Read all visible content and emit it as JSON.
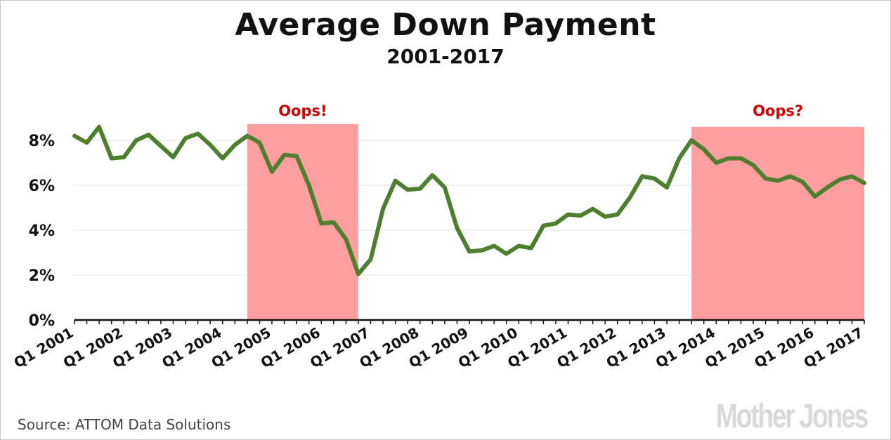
{
  "chart_data": {
    "type": "line",
    "title": "Average Down Payment",
    "subtitle": "2001-2017",
    "source": "Source: ATTOM Data Solutions",
    "logo": "Mother Jones",
    "ylim": [
      0,
      8.6
    ],
    "yticks": [
      {
        "value": 0,
        "label": "0%"
      },
      {
        "value": 2,
        "label": "2%"
      },
      {
        "value": 4,
        "label": "4%"
      },
      {
        "value": 6,
        "label": "6%"
      },
      {
        "value": 8,
        "label": "8%"
      }
    ],
    "grid": true,
    "x_labels": [
      {
        "index": 0,
        "label": "Q1 2001"
      },
      {
        "index": 4,
        "label": "Q1 2002"
      },
      {
        "index": 8,
        "label": "Q1 2003"
      },
      {
        "index": 12,
        "label": "Q1 2004"
      },
      {
        "index": 16,
        "label": "Q1 2005"
      },
      {
        "index": 20,
        "label": "Q1 2006"
      },
      {
        "index": 24,
        "label": "Q1 2007"
      },
      {
        "index": 28,
        "label": "Q1 2008"
      },
      {
        "index": 32,
        "label": "Q1 2009"
      },
      {
        "index": 36,
        "label": "Q1 2010"
      },
      {
        "index": 40,
        "label": "Q1 2011"
      },
      {
        "index": 44,
        "label": "Q1 2012"
      },
      {
        "index": 48,
        "label": "Q1 2013"
      },
      {
        "index": 52,
        "label": "Q1 2014"
      },
      {
        "index": 56,
        "label": "Q1 2015"
      },
      {
        "index": 60,
        "label": "Q1 2016"
      },
      {
        "index": 64,
        "label": "Q1 2017"
      }
    ],
    "series": [
      {
        "color": "#4e7e2e",
        "values": [
          8.2,
          7.9,
          8.6,
          7.2,
          7.25,
          8.0,
          8.25,
          7.75,
          7.25,
          8.1,
          8.3,
          7.8,
          7.2,
          7.8,
          8.2,
          7.9,
          6.6,
          7.35,
          7.3,
          6.0,
          4.3,
          4.35,
          3.6,
          2.05,
          2.7,
          4.95,
          6.2,
          5.8,
          5.85,
          6.45,
          5.9,
          4.1,
          3.05,
          3.1,
          3.3,
          2.95,
          3.3,
          3.2,
          4.2,
          4.3,
          4.7,
          4.65,
          4.95,
          4.6,
          4.7,
          5.45,
          6.4,
          6.3,
          5.9,
          7.2,
          8.0,
          7.6,
          7.0,
          7.2,
          7.2,
          6.9,
          6.3,
          6.2,
          6.4,
          6.15,
          5.5,
          5.9,
          6.25,
          6.4,
          6.1
        ]
      }
    ],
    "shaded_regions": [
      {
        "start": 14,
        "end": 23,
        "label": "Oops!",
        "color": "#ff9e9e"
      },
      {
        "start": 50,
        "end": 64,
        "label": "Oops?",
        "color": "#ff9e9e"
      }
    ]
  }
}
